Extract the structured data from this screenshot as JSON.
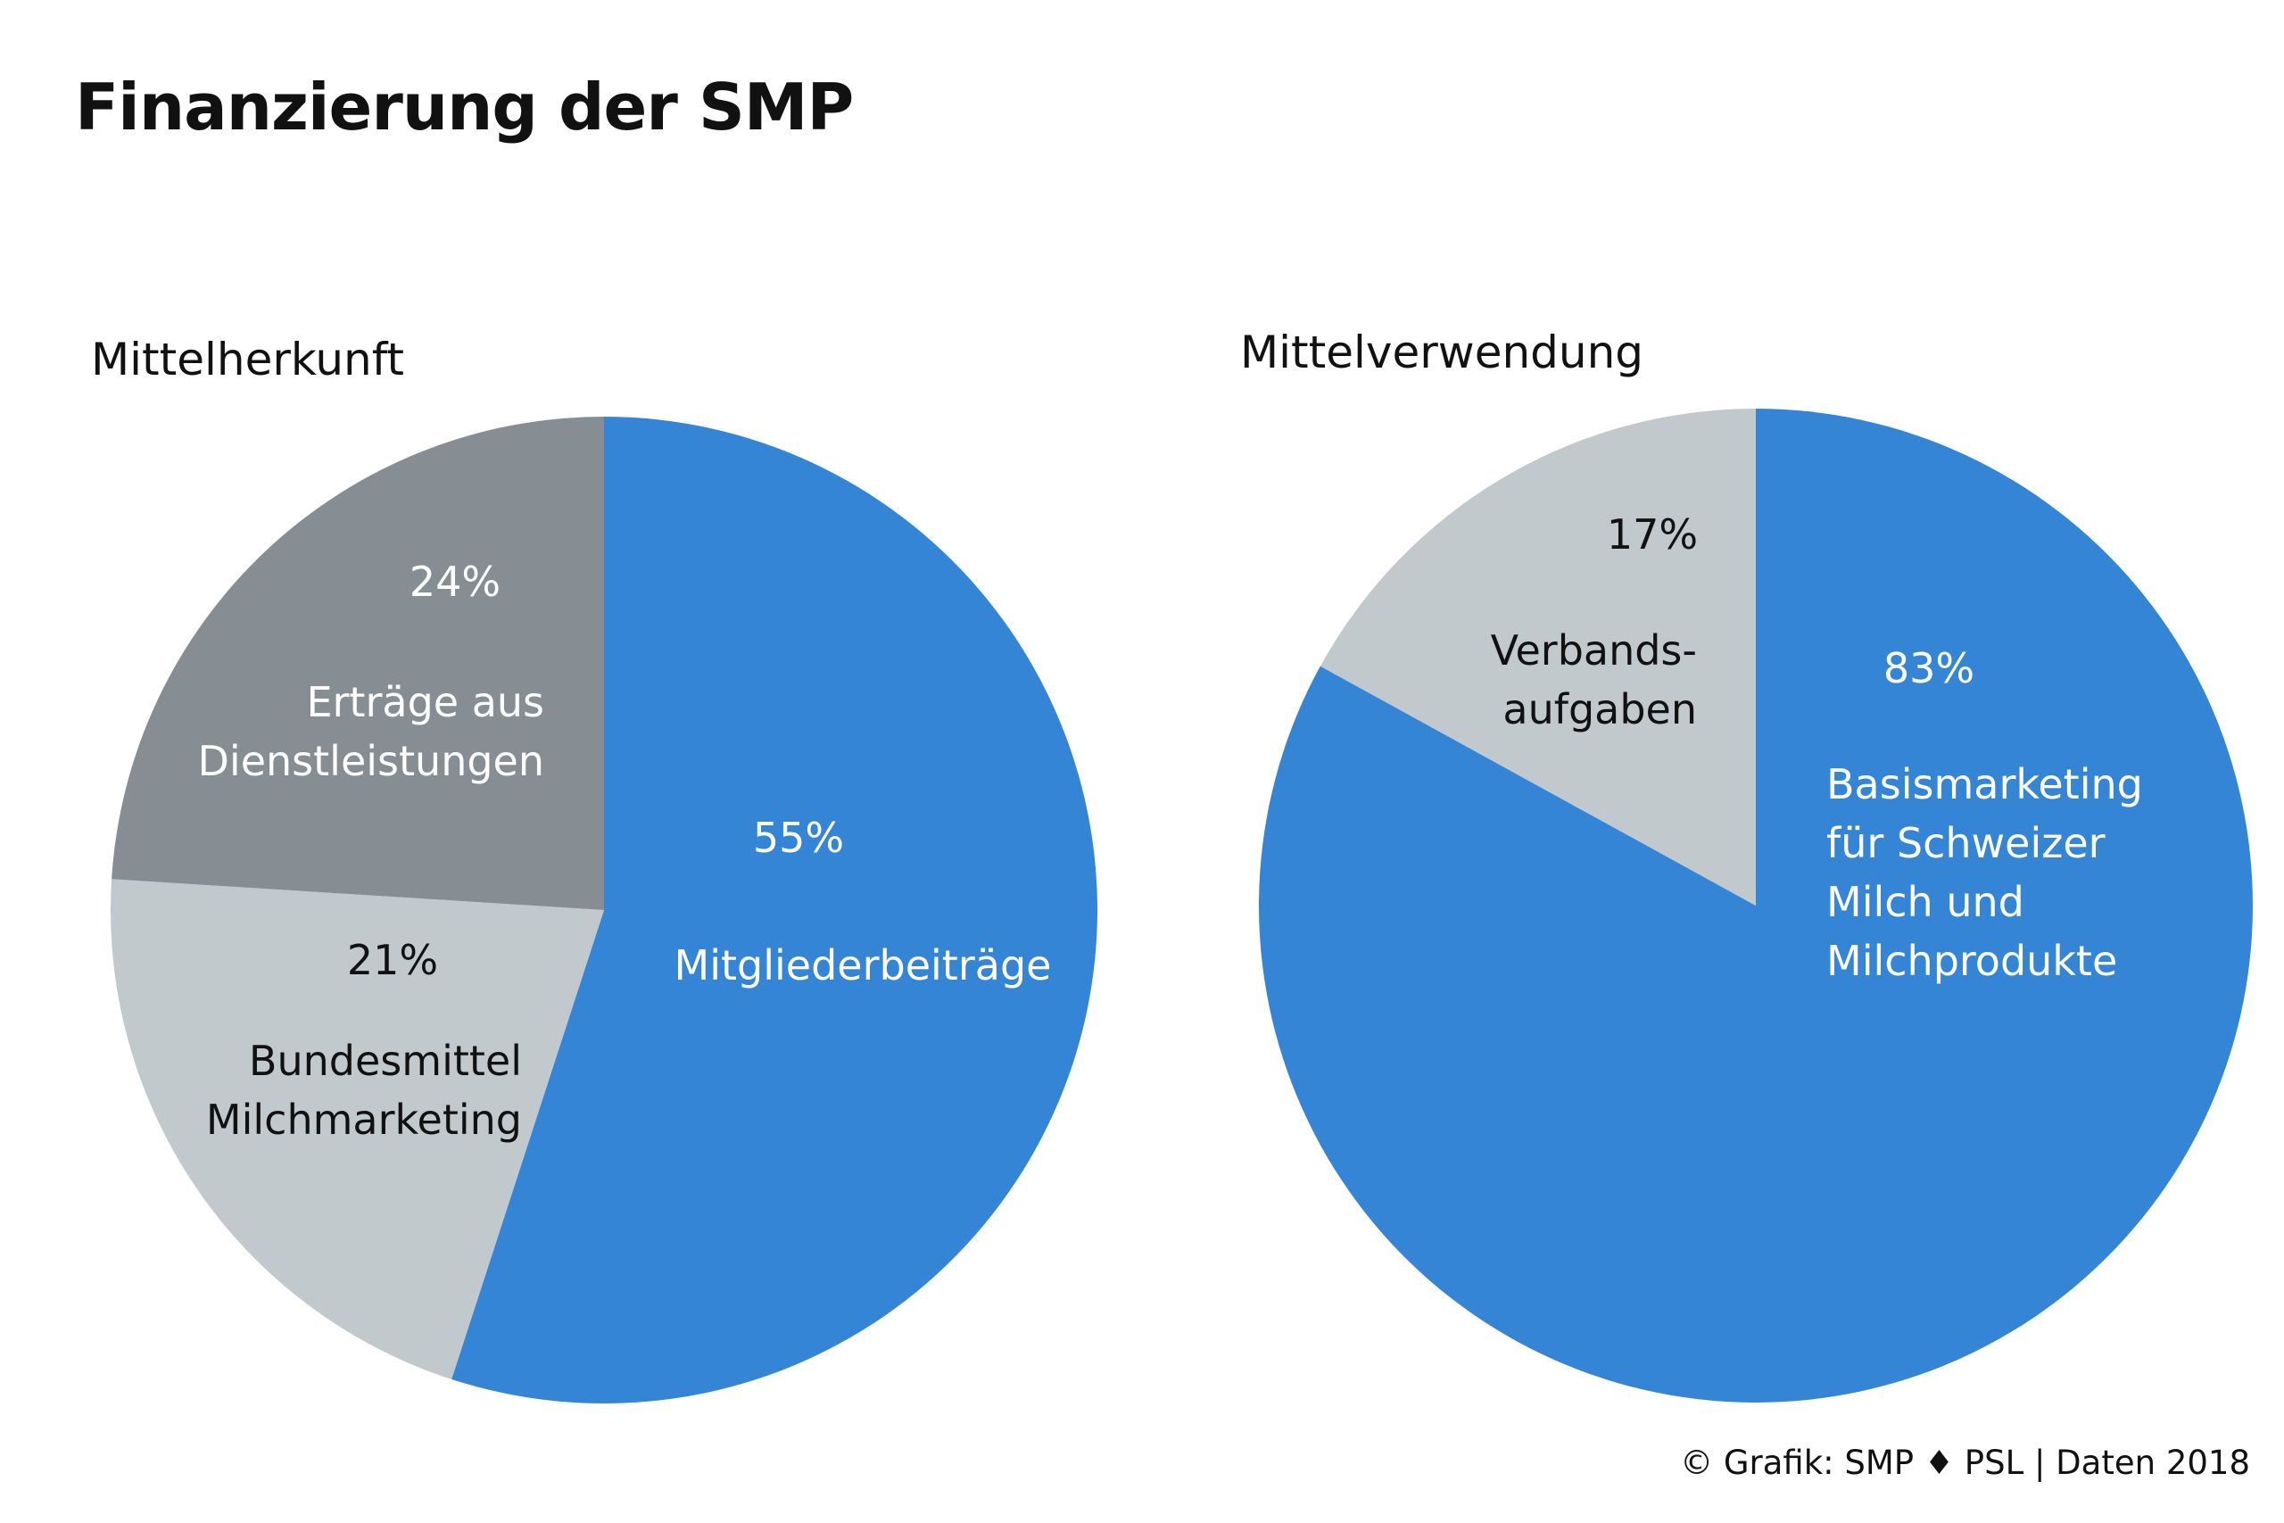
{
  "title": "Finanzierung der SMP",
  "source": "© Grafik: SMP ♦ PSL | Daten 2018",
  "colors": {
    "blue": "#3585d6",
    "dark_gray": "#868e94",
    "light_gray": "#c2c9cd",
    "text_dark": "#111111",
    "text_light": "#ffffff"
  },
  "chart_data": [
    {
      "type": "pie",
      "title": "Mittelherkunft",
      "unit": "%",
      "slices": [
        {
          "label": "Mitgliederbeiträge",
          "value": 55,
          "value_label": "55%",
          "color": "#3585d6",
          "text_color": "#ffffff"
        },
        {
          "label": "Bundesmittel Milchmarketing",
          "value": 21,
          "value_label": "21%",
          "color": "#c2c9cd",
          "text_color": "#111111"
        },
        {
          "label": "Erträge aus Dienstleistungen",
          "value": 24,
          "value_label": "24%",
          "color": "#868e94",
          "text_color": "#ffffff"
        }
      ]
    },
    {
      "type": "pie",
      "title": "Mittelverwendung",
      "unit": "%",
      "slices": [
        {
          "label": "Basismarketing für Schweizer Milch und Milchprodukte",
          "value": 83,
          "value_label": "83%",
          "color": "#3585d6",
          "text_color": "#ffffff"
        },
        {
          "label": "Verbandsaufgaben",
          "value": 17,
          "value_label": "17%",
          "color": "#c2c9cd",
          "text_color": "#111111"
        }
      ]
    }
  ]
}
